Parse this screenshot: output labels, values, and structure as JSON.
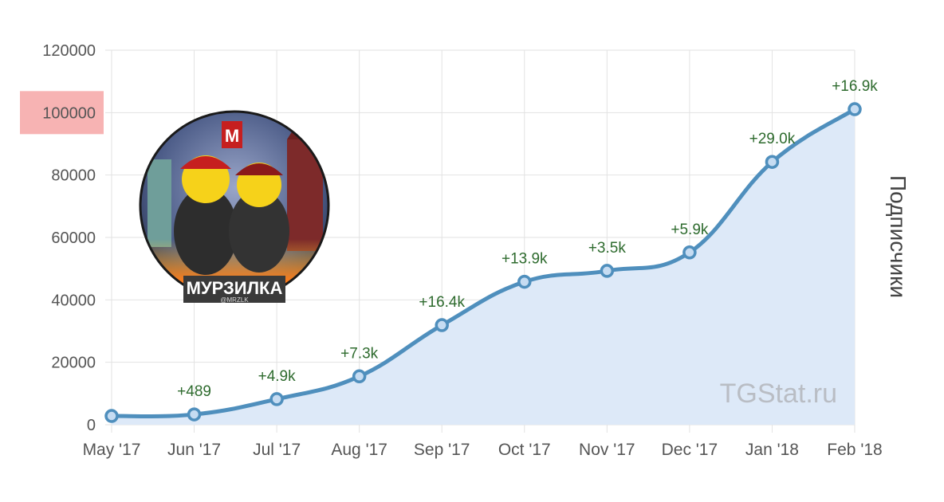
{
  "chart_data": {
    "type": "area",
    "x": [
      "May '17",
      "Jun '17",
      "Jul '17",
      "Aug '17",
      "Sep '17",
      "Oct '17",
      "Nov '17",
      "Dec '17",
      "Jan '18",
      "Feb '18"
    ],
    "series": [
      {
        "values": [
          2800,
          3300,
          8200,
          15500,
          31900,
          45800,
          49300,
          55200,
          84200,
          101100
        ]
      }
    ],
    "data_labels": [
      "",
      "+489",
      "+4.9k",
      "+7.3k",
      "+16.4k",
      "+13.9k",
      "+3.5k",
      "+5.9k",
      "+29.0k",
      "+16.9k"
    ],
    "ylabel": "Подписчики",
    "xlabel": "",
    "ylim": [
      0,
      120000
    ],
    "y_ticks": [
      "120000",
      "100000",
      "80000",
      "60000",
      "40000",
      "20000",
      "0"
    ],
    "highlighted_tick": "100000",
    "grid": true,
    "colors": {
      "line": "#4f8fbd",
      "fill": "#dde9f8",
      "grid": "#e2e2e2",
      "label": "#2e6b2e",
      "highlight": "#f7b3b3"
    }
  },
  "watermark": "TGStat.ru",
  "logo": {
    "title": "МУРЗИЛКА",
    "subtitle": "@MRZLK",
    "badge": "M"
  }
}
